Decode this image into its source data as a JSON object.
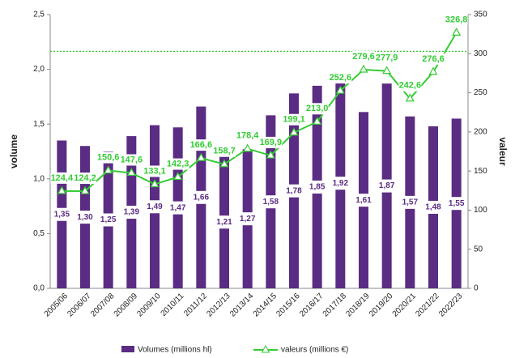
{
  "chart_data": {
    "type": "bar-line",
    "categories": [
      "2005/06",
      "2006/07",
      "2007/08",
      "2008/09",
      "2009/10",
      "2010/11",
      "2011/12",
      "2012/13",
      "2013/14",
      "2014/15",
      "2015/16",
      "2016/17",
      "2017/18",
      "2018/19",
      "2019/20",
      "2020/21",
      "2021/22",
      "2022/23"
    ],
    "y_label": "volume",
    "y2_label": "valeur",
    "series": [
      {
        "name": "Volumes (millions hl)",
        "type": "bar",
        "color": "#5b2c83",
        "values": [
          1.35,
          1.3,
          1.25,
          1.39,
          1.49,
          1.47,
          1.66,
          1.21,
          1.27,
          1.58,
          1.78,
          1.85,
          1.92,
          1.61,
          1.87,
          1.57,
          1.48,
          1.55
        ],
        "value_labels": [
          "1,35",
          "1,30",
          "1,25",
          "1,39",
          "1,49",
          "1,47",
          "1,66",
          "1,21",
          "1,27",
          "1,58",
          "1,78",
          "1,85",
          "1,92",
          "1,61",
          "1,87",
          "1,57",
          "1,48",
          "1,55"
        ]
      },
      {
        "name": "valeurs (millions €)",
        "type": "line",
        "axis": "y2",
        "color": "#33cc33",
        "values": [
          124.4,
          124.2,
          150.6,
          147.6,
          133.1,
          142.3,
          166.6,
          158.7,
          178.4,
          169.9,
          199.1,
          213.0,
          252.6,
          279.6,
          277.9,
          242.6,
          276.6,
          326.8
        ],
        "value_labels": [
          "124,4",
          "124,2",
          "150,6",
          "147,6",
          "133,1",
          "142,3",
          "166,6",
          "158,7",
          "178,4",
          "169,9",
          "199,1",
          "213,0",
          "252,6",
          "279,6",
          "277,9",
          "242,6",
          "276,6",
          "326,8"
        ]
      }
    ],
    "ylim": [
      0,
      2.5
    ],
    "yticks": [
      {
        "value": 0,
        "label": "0,0"
      },
      {
        "value": 0.5,
        "label": "0,5"
      },
      {
        "value": 1,
        "label": "1,0"
      },
      {
        "value": 1.5,
        "label": "1,5"
      },
      {
        "value": 2,
        "label": "2,0"
      },
      {
        "value": 2.5,
        "label": "2,5"
      }
    ],
    "y2lim": [
      0,
      350
    ],
    "y2ticks": [
      0,
      50,
      100,
      150,
      200,
      250,
      300,
      350
    ],
    "reference_line": {
      "value": 303,
      "axis": "y2",
      "color": "#33cc33"
    },
    "legend": "bottom"
  }
}
